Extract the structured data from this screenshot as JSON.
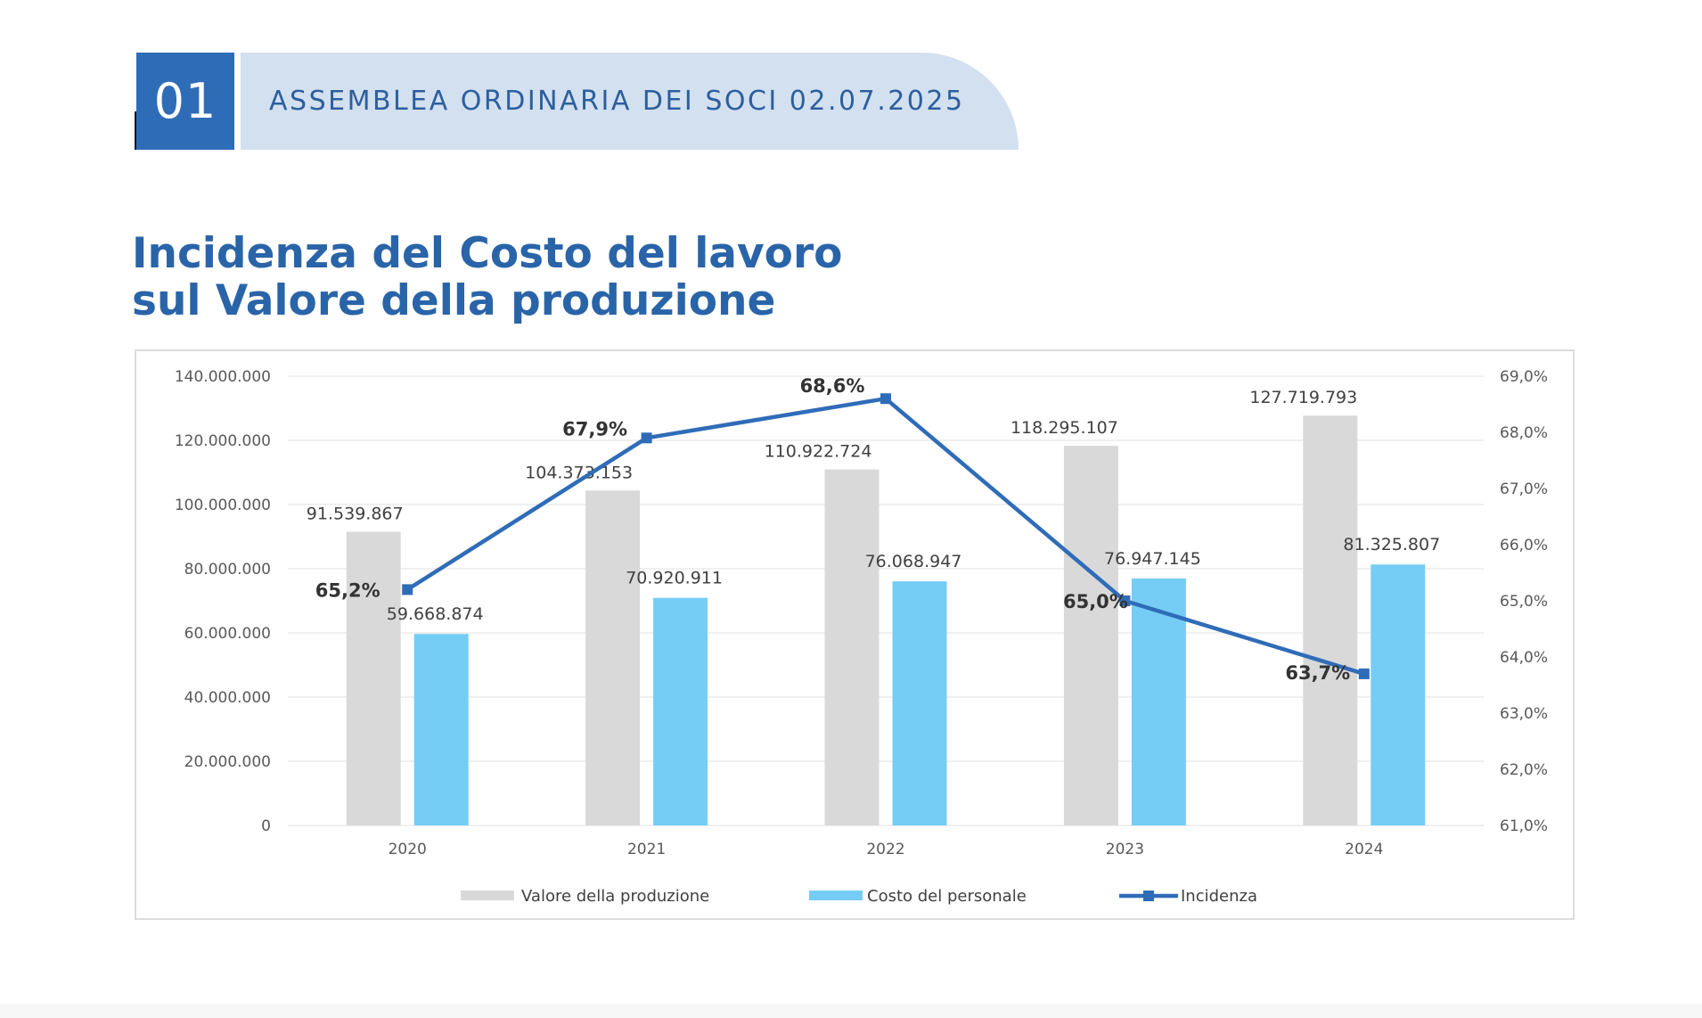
{
  "header": {
    "number": "01",
    "banner_text": "ASSEMBLEA ORDINARIA DEI SOCI 02.07.2025"
  },
  "title": {
    "line1": "Incidenza del Costo del lavoro",
    "line2": "sul Valore della produzione"
  },
  "colors": {
    "accent": "#2f6cb8",
    "banner_bg": "#d3e0ef",
    "title": "#2a64a8",
    "bar_valore": "#d9d9d9",
    "bar_costo": "#75cdf6",
    "line_incidenza": "#2f6cb8"
  },
  "chart_data": {
    "type": "bar",
    "categories": [
      "2020",
      "2021",
      "2022",
      "2023",
      "2024"
    ],
    "series": [
      {
        "name": "Valore della produzione",
        "values": [
          91539867,
          104373153,
          110922724,
          118295107,
          127719793
        ],
        "labels": [
          "91.539.867",
          "104.373.153",
          "110.922.724",
          "118.295.107",
          "127.719.793"
        ],
        "axis": "left",
        "kind": "bar"
      },
      {
        "name": "Costo del personale",
        "values": [
          59668874,
          70920911,
          76068947,
          76947145,
          81325807
        ],
        "labels": [
          "59.668.874",
          "70.920.911",
          "76.068.947",
          "76.947.145",
          "81.325.807"
        ],
        "axis": "left",
        "kind": "bar"
      },
      {
        "name": "Incidenza",
        "values": [
          65.2,
          67.9,
          68.6,
          65.0,
          63.7
        ],
        "labels": [
          "65,2%",
          "67,9%",
          "68,6%",
          "65,0%",
          "63,7%"
        ],
        "axis": "right",
        "kind": "line"
      }
    ],
    "ylim_left": [
      0,
      140000000
    ],
    "ylim_right": [
      61.0,
      69.0
    ],
    "yticks_left": [
      "0",
      "20.000.000",
      "40.000.000",
      "60.000.000",
      "80.000.000",
      "100.000.000",
      "120.000.000",
      "140.000.000"
    ],
    "yticks_right": [
      "61,0%",
      "62,0%",
      "63,0%",
      "64,0%",
      "65,0%",
      "66,0%",
      "67,0%",
      "68,0%",
      "69,0%"
    ],
    "grid": true,
    "legend_position": "bottom"
  }
}
